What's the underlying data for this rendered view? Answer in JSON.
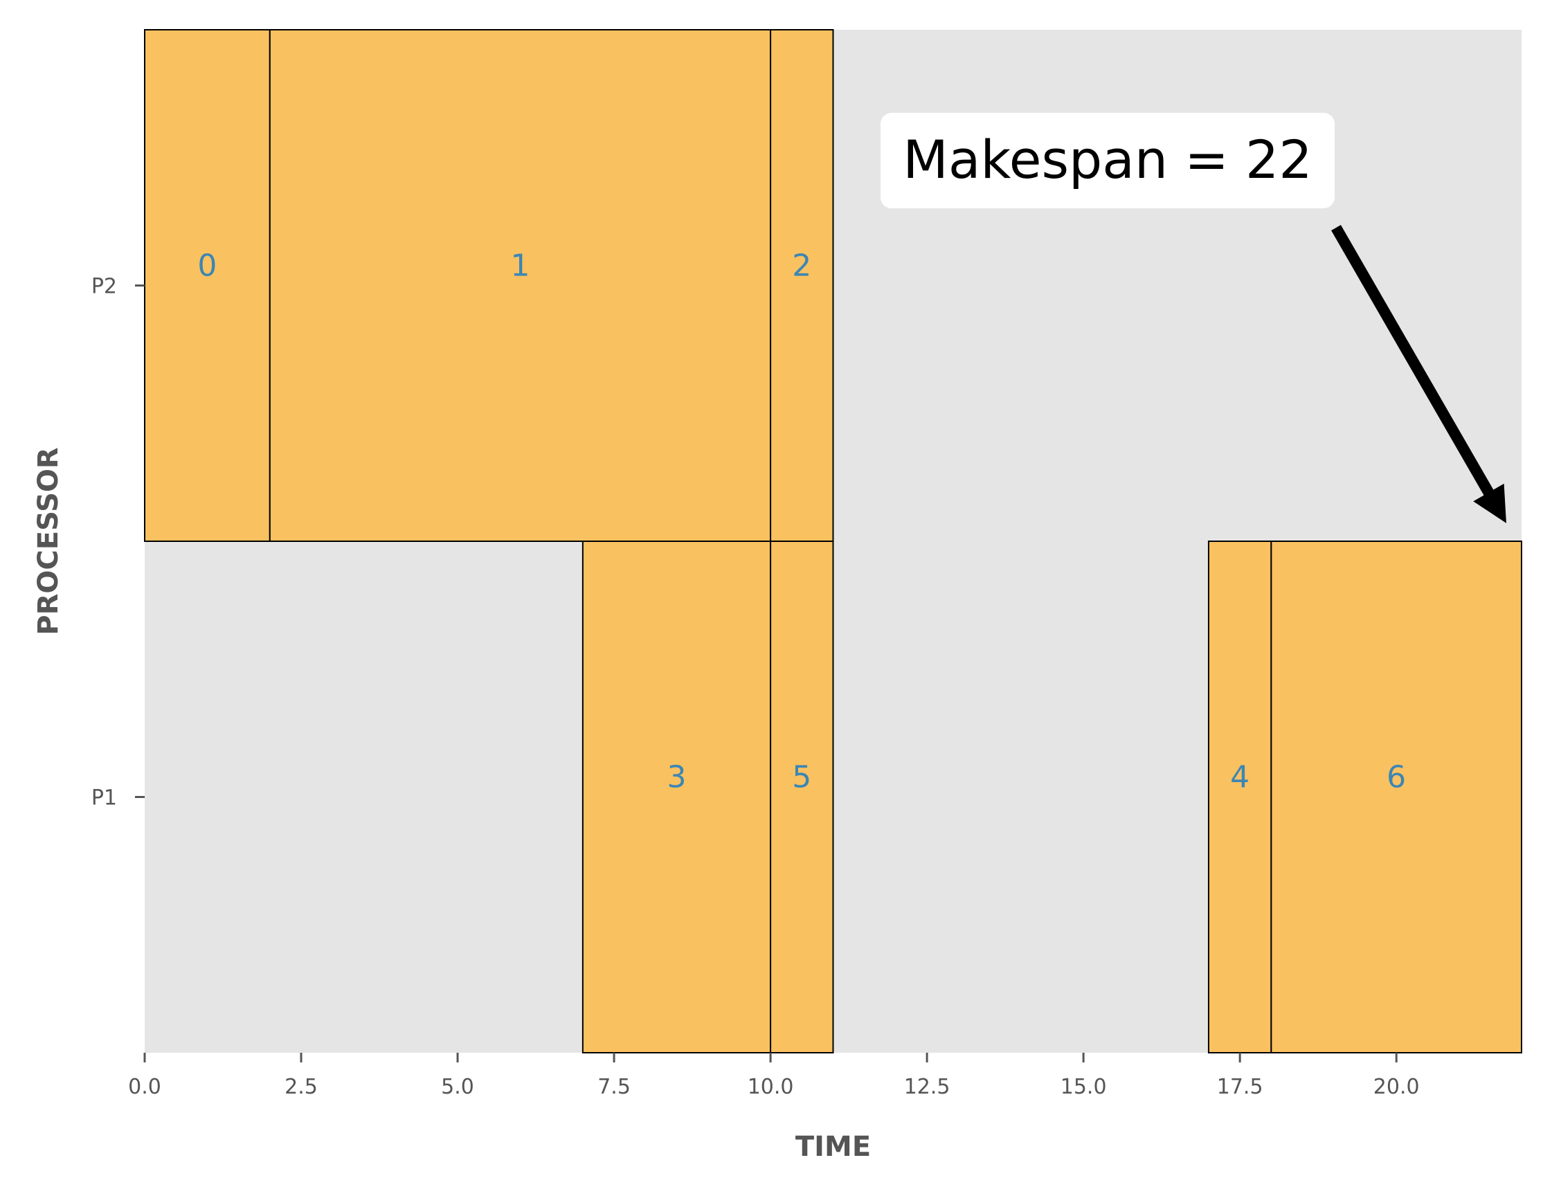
{
  "chart_data": {
    "type": "gantt",
    "title": "",
    "xlabel": "TIME",
    "ylabel": "PROCESSOR",
    "xlim": [
      0,
      22
    ],
    "xticks": [
      "0.0",
      "2.5",
      "5.0",
      "7.5",
      "10.0",
      "12.5",
      "15.0",
      "17.5",
      "20.0"
    ],
    "xtick_values": [
      0,
      2.5,
      5,
      7.5,
      10,
      12.5,
      15,
      17.5,
      20
    ],
    "processors": [
      "P1",
      "P2"
    ],
    "tasks": [
      {
        "id": "0",
        "processor": "P2",
        "start": 0,
        "end": 2
      },
      {
        "id": "1",
        "processor": "P2",
        "start": 2,
        "end": 10
      },
      {
        "id": "2",
        "processor": "P2",
        "start": 10,
        "end": 11
      },
      {
        "id": "3",
        "processor": "P1",
        "start": 7,
        "end": 10
      },
      {
        "id": "5",
        "processor": "P1",
        "start": 10,
        "end": 11
      },
      {
        "id": "4",
        "processor": "P1",
        "start": 17,
        "end": 18
      },
      {
        "id": "6",
        "processor": "P1",
        "start": 18,
        "end": 22
      }
    ],
    "annotation": {
      "text": "Makespan = 22",
      "points_to_time": 22
    },
    "grid": false,
    "colors": {
      "task": "#f9c160",
      "background": "#e5e5e5",
      "task_label": "#3b86b5",
      "axis_text": "#555555"
    }
  }
}
